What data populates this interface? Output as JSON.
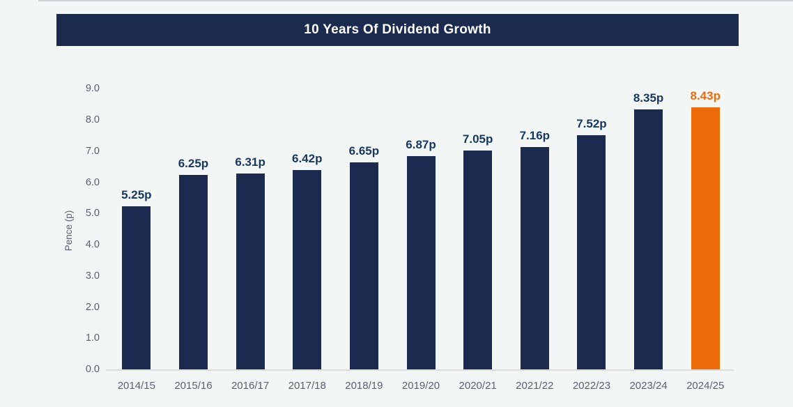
{
  "page": {
    "background_color": "#f2f6f5"
  },
  "header": {
    "title": "10 Years Of Dividend Growth",
    "background_color": "#1a2b4e",
    "text_color": "#ffffff"
  },
  "chart_data": {
    "type": "bar",
    "title": "10 Years Of Dividend Growth",
    "categories": [
      "2014/15",
      "2015/16",
      "2016/17",
      "2017/18",
      "2018/19",
      "2019/20",
      "2020/21",
      "2021/22",
      "2022/23",
      "2023/24",
      "2024/25"
    ],
    "values": [
      5.25,
      6.25,
      6.31,
      6.42,
      6.65,
      6.87,
      7.05,
      7.16,
      7.52,
      8.35,
      8.43
    ],
    "bar_labels": [
      "5.25p",
      "6.25p",
      "6.31p",
      "6.42p",
      "6.65p",
      "6.87p",
      "7.05p",
      "7.16p",
      "7.52p",
      "8.35p",
      "8.43p"
    ],
    "xlabel": "",
    "ylabel": "Pence (p)",
    "y_ticks": [
      "0.0",
      "1.0",
      "2.0",
      "3.0",
      "4.0",
      "5.0",
      "6.0",
      "7.0",
      "8.0",
      "9.0"
    ],
    "ylim": [
      0,
      9.0
    ],
    "grid": false,
    "legend": false,
    "bar_color": "#1b2a4e",
    "highlight_color": "#ec6b08",
    "highlight_index": 10,
    "label_color": "#17375e",
    "axis_text_color": "#5a6170"
  }
}
